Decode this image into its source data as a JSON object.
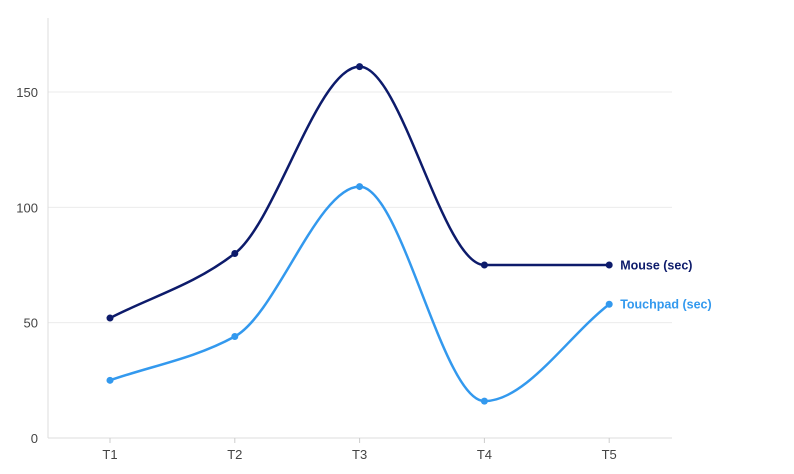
{
  "chart_data": {
    "type": "line",
    "title": "",
    "xlabel": "",
    "ylabel": "",
    "categories": [
      "T1",
      "T2",
      "T3",
      "T4",
      "T5"
    ],
    "ylim": [
      0,
      180
    ],
    "yticks": [
      0,
      50,
      100,
      150
    ],
    "grid": true,
    "legend": "inline labels at line ends (right)",
    "curve": "smooth",
    "series": [
      {
        "name": "Mouse (sec)",
        "color": "#0d1b6b",
        "values": [
          52,
          80,
          161,
          75,
          75
        ]
      },
      {
        "name": "Touchpad (sec)",
        "color": "#3399ee",
        "values": [
          25,
          44,
          109,
          16,
          58
        ]
      }
    ]
  }
}
